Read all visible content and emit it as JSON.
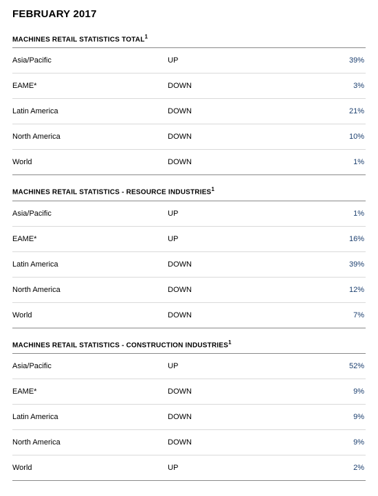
{
  "page_title": "FEBRUARY 2017",
  "colors": {
    "text": "#000000",
    "value": "#1a3e6e",
    "section_rule": "#888888",
    "row_rule": "#d9d9d9",
    "background": "#ffffff"
  },
  "typography": {
    "title_fontsize_pt": 11,
    "header_fontsize_pt": 7.5,
    "row_fontsize_pt": 8.5,
    "font_family": "Arial"
  },
  "sections": [
    {
      "title": "MACHINES RETAIL STATISTICS TOTAL",
      "footnote_marker": "1",
      "rows": [
        {
          "region": "Asia/Pacific",
          "direction": "UP",
          "pct": "39%"
        },
        {
          "region": "EAME*",
          "direction": "DOWN",
          "pct": "3%"
        },
        {
          "region": "Latin America",
          "direction": "DOWN",
          "pct": "21%"
        },
        {
          "region": "North America",
          "direction": "DOWN",
          "pct": "10%"
        },
        {
          "region": "World",
          "direction": "DOWN",
          "pct": "1%"
        }
      ]
    },
    {
      "title": "MACHINES RETAIL STATISTICS - RESOURCE INDUSTRIES",
      "footnote_marker": "1",
      "rows": [
        {
          "region": "Asia/Pacific",
          "direction": "UP",
          "pct": "1%"
        },
        {
          "region": "EAME*",
          "direction": "UP",
          "pct": "16%"
        },
        {
          "region": "Latin America",
          "direction": "DOWN",
          "pct": "39%"
        },
        {
          "region": "North America",
          "direction": "DOWN",
          "pct": "12%"
        },
        {
          "region": "World",
          "direction": "DOWN",
          "pct": "7%"
        }
      ]
    },
    {
      "title": "MACHINES RETAIL STATISTICS - CONSTRUCTION INDUSTRIES",
      "footnote_marker": "1",
      "rows": [
        {
          "region": "Asia/Pacific",
          "direction": "UP",
          "pct": "52%"
        },
        {
          "region": "EAME*",
          "direction": "DOWN",
          "pct": "9%"
        },
        {
          "region": "Latin America",
          "direction": "DOWN",
          "pct": "9%"
        },
        {
          "region": "North America",
          "direction": "DOWN",
          "pct": "9%"
        },
        {
          "region": "World",
          "direction": "UP",
          "pct": "2%"
        }
      ]
    }
  ]
}
